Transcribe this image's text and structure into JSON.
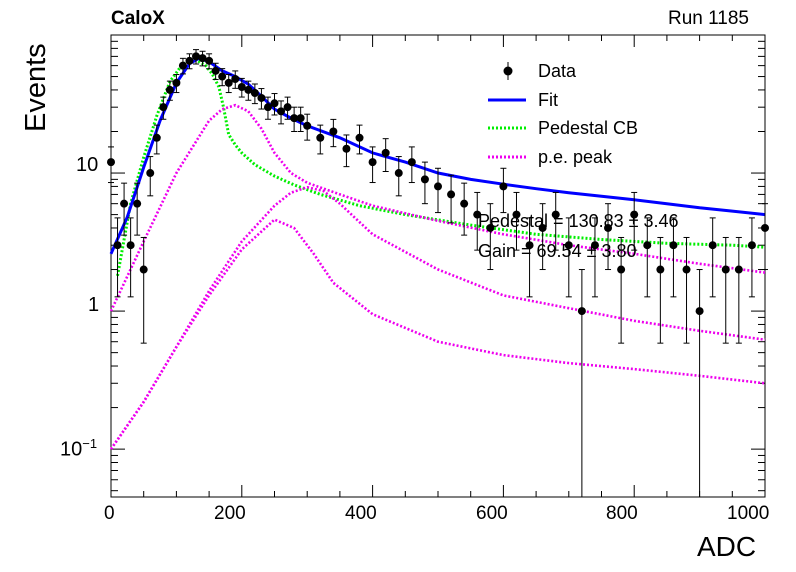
{
  "header": {
    "experiment": "CaloX",
    "run": "Run 1185"
  },
  "axes": {
    "xlabel": "ADC",
    "ylabel": "Events",
    "x_ticks": [
      "0",
      "200",
      "400",
      "600",
      "800",
      "1000"
    ],
    "y_tick_1": "1",
    "y_tick_10": "10",
    "y_tick_01_base": "10",
    "y_tick_01_exp": "−1"
  },
  "legend": {
    "data": "Data",
    "fit": "Fit",
    "pedestal": "Pedestal CB",
    "pe_peak": "p.e. peak"
  },
  "fit_results": {
    "pedestal": "Pedestal = 130.83 ± 3.46",
    "gain": "Gain = 69.54 ± 3.80"
  },
  "colors": {
    "data": "#000000",
    "fit": "#0000ff",
    "pedestal": "#00ee00",
    "pe_peak": "#ee00ee"
  },
  "chart_data": {
    "type": "scatter",
    "title": "",
    "xlabel": "ADC",
    "ylabel": "Events",
    "xlim": [
      0,
      1000
    ],
    "ylim": [
      0.045,
      100
    ],
    "y_scale": "log",
    "legend_position": "top-right",
    "series": [
      {
        "name": "Data",
        "kind": "points_with_errors",
        "x": [
          0,
          10,
          20,
          30,
          40,
          50,
          60,
          70,
          80,
          90,
          100,
          110,
          120,
          130,
          140,
          150,
          160,
          170,
          180,
          190,
          200,
          210,
          220,
          230,
          240,
          250,
          260,
          270,
          280,
          290,
          300,
          320,
          340,
          360,
          380,
          400,
          420,
          440,
          460,
          480,
          500,
          520,
          540,
          560,
          580,
          600,
          620,
          640,
          660,
          680,
          700,
          720,
          740,
          760,
          780,
          800,
          820,
          840,
          860,
          880,
          900,
          920,
          940,
          960,
          980,
          1000
        ],
        "y": [
          12,
          3,
          6,
          3,
          6,
          2,
          10,
          18,
          30,
          40,
          45,
          60,
          65,
          70,
          68,
          65,
          55,
          50,
          45,
          48,
          42,
          40,
          38,
          35,
          30,
          32,
          28,
          30,
          25,
          25,
          22,
          18,
          20,
          15,
          18,
          12,
          14,
          10,
          12,
          9,
          8,
          7,
          6,
          5,
          4,
          8,
          5,
          3,
          4,
          5,
          3,
          1,
          3,
          4,
          2,
          5,
          3,
          2,
          3,
          2,
          1,
          3,
          2,
          2,
          3,
          4
        ]
      },
      {
        "name": "Fit",
        "kind": "curve",
        "x": [
          0,
          25,
          50,
          75,
          100,
          120,
          135,
          150,
          170,
          190,
          210,
          230,
          250,
          275,
          300,
          350,
          400,
          450,
          500,
          550,
          600,
          650,
          700,
          750,
          800,
          850,
          900,
          950,
          1000
        ],
        "y": [
          2.6,
          4.8,
          11,
          24,
          45,
          62,
          68,
          64,
          55,
          50,
          44,
          36,
          29,
          25,
          22,
          18,
          14,
          12,
          10,
          9,
          8.3,
          7.7,
          7.2,
          6.8,
          6.4,
          6.0,
          5.6,
          5.3,
          5.0
        ]
      },
      {
        "name": "Pedestal CB",
        "kind": "curve",
        "x": [
          10,
          30,
          50,
          70,
          90,
          110,
          130,
          145,
          155,
          165,
          172,
          180,
          190,
          200,
          220,
          250,
          280,
          320,
          380,
          450,
          550,
          650,
          750,
          850,
          950,
          1000
        ],
        "y": [
          1.8,
          6,
          13,
          26,
          46,
          62,
          66,
          60,
          52,
          42,
          30,
          19,
          16,
          14,
          11.5,
          9.5,
          8.2,
          7.0,
          5.8,
          5.0,
          4.2,
          3.6,
          3.3,
          3.1,
          3.0,
          2.9
        ]
      },
      {
        "name": "p.e. peak",
        "kind": "curve",
        "x": [
          0,
          50,
          100,
          150,
          170,
          190,
          210,
          230,
          250,
          275,
          300,
          350,
          400,
          500,
          600,
          700,
          800,
          900,
          1000
        ],
        "y": [
          1.0,
          3.2,
          10,
          24,
          29,
          31,
          28,
          21,
          14,
          10,
          8.5,
          7.0,
          5.8,
          4.5,
          3.6,
          3.0,
          2.6,
          2.2,
          1.9
        ]
      },
      {
        "name": "",
        "kind": "curve",
        "x": [
          0,
          50,
          100,
          150,
          200,
          250,
          275,
          300,
          325,
          350,
          400,
          500,
          600,
          700,
          800,
          900,
          1000
        ],
        "y": [
          0.1,
          0.22,
          0.55,
          1.4,
          3.2,
          5.8,
          7.2,
          7.9,
          7.4,
          6.0,
          3.6,
          2.0,
          1.3,
          1.05,
          0.85,
          0.72,
          0.62
        ]
      },
      {
        "name": "",
        "kind": "curve",
        "x": [
          0,
          50,
          100,
          150,
          200,
          250,
          280,
          310,
          340,
          400,
          500,
          600,
          700,
          800,
          900,
          1000
        ],
        "y": [
          0.1,
          0.22,
          0.55,
          1.3,
          2.8,
          4.6,
          4.0,
          2.6,
          1.6,
          0.95,
          0.6,
          0.48,
          0.42,
          0.38,
          0.34,
          0.3
        ]
      }
    ]
  }
}
